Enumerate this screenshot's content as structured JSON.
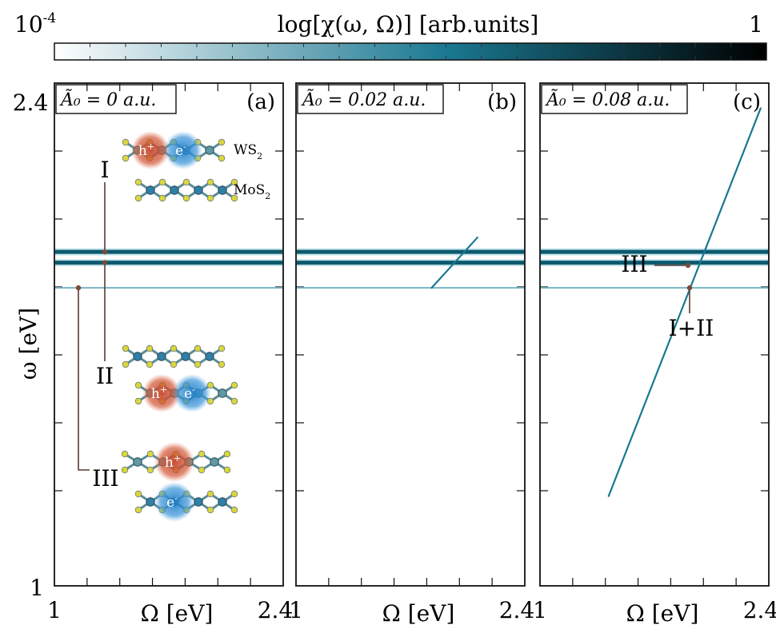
{
  "colorbar": {
    "label": "log[χ(ω, Ω)] [arb.units]",
    "min_label": "10",
    "min_exp": "-4",
    "max_label": "1",
    "colors": [
      "#ffffff",
      "#1a7891",
      "#000000"
    ]
  },
  "chart_data": [
    {
      "type": "heatmap",
      "panel": "(a)",
      "amplitude_label": "Ã₀ = 0 a.u.",
      "xlabel": "Ω [eV]",
      "ylabel": "ω [eV]",
      "xlim": [
        1,
        2.4
      ],
      "ylim": [
        1,
        2.4
      ],
      "x_ticks": [
        "1",
        "2.4"
      ],
      "y_ticks": [
        "1",
        "2.4"
      ],
      "lines": [
        {
          "kind": "horizontal",
          "y": 1.93,
          "intensity": "high"
        },
        {
          "kind": "horizontal",
          "y": 1.9,
          "intensity": "high"
        },
        {
          "kind": "horizontal",
          "y": 1.83,
          "intensity": "low"
        }
      ],
      "annotations": [
        {
          "text": "I",
          "x": 1.32,
          "y": 1.93
        },
        {
          "text": "II",
          "x": 1.32,
          "y": 1.9
        },
        {
          "text": "III",
          "x": 1.15,
          "y": 1.83
        }
      ],
      "schematic": {
        "labels": [
          "WS",
          "MoS"
        ],
        "subscript": "2",
        "hole": "h",
        "hole_sup": "+",
        "electron": "e",
        "electron_sup": "-"
      }
    },
    {
      "type": "heatmap",
      "panel": "(b)",
      "amplitude_label": "Ã₀ = 0.02 a.u.",
      "xlabel": "Ω [eV]",
      "xlim": [
        1,
        2.4
      ],
      "ylim": [
        1,
        2.4
      ],
      "x_ticks": [
        "1",
        "2.4"
      ],
      "lines": [
        {
          "kind": "horizontal",
          "y": 1.93,
          "intensity": "high"
        },
        {
          "kind": "horizontal",
          "y": 1.9,
          "intensity": "high"
        },
        {
          "kind": "horizontal",
          "y": 1.83,
          "intensity": "low"
        },
        {
          "kind": "diagonal",
          "x0": 1.83,
          "y0": 1.83,
          "x1": 2.11,
          "y1": 1.97,
          "intensity": "medium"
        }
      ]
    },
    {
      "type": "heatmap",
      "panel": "(c)",
      "amplitude_label": "Ã₀ = 0.08 a.u.",
      "xlabel": "Ω [eV]",
      "xlim": [
        1,
        2.4
      ],
      "ylim": [
        1,
        2.4
      ],
      "x_ticks": [
        "1",
        "2.4"
      ],
      "lines": [
        {
          "kind": "horizontal",
          "y": 1.93,
          "intensity": "high"
        },
        {
          "kind": "horizontal",
          "y": 1.9,
          "intensity": "high"
        },
        {
          "kind": "horizontal",
          "y": 1.83,
          "intensity": "low"
        },
        {
          "kind": "diagonal",
          "x0": 1.42,
          "y0": 1.25,
          "x1": 2.35,
          "y1": 2.33,
          "intensity": "medium"
        }
      ],
      "annotations": [
        {
          "text": "III",
          "x": 1.91,
          "y": 1.86
        },
        {
          "text": "I+II",
          "x": 1.92,
          "y": 1.83
        }
      ]
    }
  ]
}
